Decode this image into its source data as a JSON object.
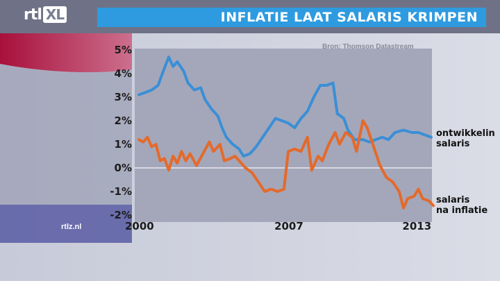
{
  "header": {
    "logo_prefix": "rtl",
    "logo_suffix": "XL",
    "headline": "INFLATIE LAAT SALARIS KRIMPEN"
  },
  "source": "Bron: Thomson Datastream",
  "site": "rtlz.nl",
  "colors": {
    "accent": "#2e9be0",
    "series_blue": "#3a8fd6",
    "series_orange": "#e46a2b",
    "plot_bg": "#a4a7ba"
  },
  "chart_data": {
    "type": "line",
    "xlim": [
      2000,
      2013.8
    ],
    "ylim": [
      -2,
      5
    ],
    "yticks": [
      "5%",
      "4%",
      "3%",
      "2%",
      "1%",
      "0%",
      "-1%",
      "-2%"
    ],
    "ytick_values": [
      5,
      4,
      3,
      2,
      1,
      0,
      -1,
      -2
    ],
    "xticks": [
      "2000",
      "2007",
      "2013"
    ],
    "xtick_values": [
      2000.0,
      2007.0,
      2013.0
    ],
    "grid": false,
    "zero_line": true,
    "series": [
      {
        "name": "ontwikkeling salaris",
        "label_line1": "ontwikkelin",
        "label_line2": "salaris",
        "color": "#3a8fd6",
        "points": [
          [
            2000.0,
            3.1
          ],
          [
            2000.3,
            3.2
          ],
          [
            2000.6,
            3.3
          ],
          [
            2000.9,
            3.5
          ],
          [
            2001.1,
            4.0
          ],
          [
            2001.4,
            4.7
          ],
          [
            2001.6,
            4.3
          ],
          [
            2001.8,
            4.5
          ],
          [
            2002.1,
            4.1
          ],
          [
            2002.3,
            3.6
          ],
          [
            2002.6,
            3.3
          ],
          [
            2002.9,
            3.4
          ],
          [
            2003.1,
            2.9
          ],
          [
            2003.4,
            2.5
          ],
          [
            2003.7,
            2.2
          ],
          [
            2003.9,
            1.7
          ],
          [
            2004.1,
            1.3
          ],
          [
            2004.4,
            1.0
          ],
          [
            2004.7,
            0.8
          ],
          [
            2004.9,
            0.5
          ],
          [
            2005.2,
            0.6
          ],
          [
            2005.5,
            0.9
          ],
          [
            2005.8,
            1.3
          ],
          [
            2006.1,
            1.7
          ],
          [
            2006.4,
            2.1
          ],
          [
            2006.7,
            2.0
          ],
          [
            2007.0,
            1.9
          ],
          [
            2007.3,
            1.7
          ],
          [
            2007.6,
            2.1
          ],
          [
            2007.9,
            2.4
          ],
          [
            2008.2,
            3.0
          ],
          [
            2008.5,
            3.5
          ],
          [
            2008.8,
            3.5
          ],
          [
            2009.1,
            3.6
          ],
          [
            2009.3,
            2.3
          ],
          [
            2009.6,
            2.1
          ],
          [
            2009.8,
            1.6
          ],
          [
            2010.1,
            1.2
          ],
          [
            2010.5,
            1.2
          ],
          [
            2010.8,
            1.1
          ],
          [
            2011.1,
            1.2
          ],
          [
            2011.4,
            1.3
          ],
          [
            2011.7,
            1.2
          ],
          [
            2012.0,
            1.5
          ],
          [
            2012.4,
            1.6
          ],
          [
            2012.8,
            1.5
          ],
          [
            2013.1,
            1.5
          ],
          [
            2013.4,
            1.4
          ],
          [
            2013.7,
            1.3
          ]
        ]
      },
      {
        "name": "salaris na inflatie",
        "label_line1": "salaris",
        "label_line2": "na inflatie",
        "color": "#e46a2b",
        "points": [
          [
            2000.0,
            1.2
          ],
          [
            2000.2,
            1.1
          ],
          [
            2000.4,
            1.3
          ],
          [
            2000.6,
            0.9
          ],
          [
            2000.8,
            1.0
          ],
          [
            2001.0,
            0.3
          ],
          [
            2001.2,
            0.4
          ],
          [
            2001.4,
            -0.1
          ],
          [
            2001.6,
            0.5
          ],
          [
            2001.8,
            0.2
          ],
          [
            2002.0,
            0.7
          ],
          [
            2002.2,
            0.3
          ],
          [
            2002.4,
            0.6
          ],
          [
            2002.7,
            0.1
          ],
          [
            2003.0,
            0.6
          ],
          [
            2003.3,
            1.1
          ],
          [
            2003.5,
            0.7
          ],
          [
            2003.8,
            1.0
          ],
          [
            2004.0,
            0.3
          ],
          [
            2004.3,
            0.4
          ],
          [
            2004.5,
            0.5
          ],
          [
            2004.8,
            0.2
          ],
          [
            2005.0,
            0.0
          ],
          [
            2005.3,
            -0.2
          ],
          [
            2005.6,
            -0.6
          ],
          [
            2005.9,
            -1.0
          ],
          [
            2006.2,
            -0.9
          ],
          [
            2006.5,
            -1.0
          ],
          [
            2006.8,
            -0.9
          ],
          [
            2007.0,
            0.7
          ],
          [
            2007.3,
            0.8
          ],
          [
            2007.6,
            0.7
          ],
          [
            2007.9,
            1.3
          ],
          [
            2008.1,
            -0.1
          ],
          [
            2008.4,
            0.5
          ],
          [
            2008.6,
            0.3
          ],
          [
            2008.9,
            1.0
          ],
          [
            2009.2,
            1.5
          ],
          [
            2009.4,
            1.0
          ],
          [
            2009.7,
            1.5
          ],
          [
            2010.0,
            1.3
          ],
          [
            2010.2,
            0.7
          ],
          [
            2010.5,
            2.0
          ],
          [
            2010.7,
            1.7
          ],
          [
            2011.0,
            0.9
          ],
          [
            2011.3,
            0.1
          ],
          [
            2011.6,
            -0.4
          ],
          [
            2011.9,
            -0.6
          ],
          [
            2012.2,
            -1.0
          ],
          [
            2012.4,
            -1.7
          ],
          [
            2012.6,
            -1.3
          ],
          [
            2012.9,
            -1.2
          ],
          [
            2013.1,
            -0.9
          ],
          [
            2013.3,
            -1.3
          ],
          [
            2013.6,
            -1.4
          ],
          [
            2013.8,
            -1.6
          ]
        ]
      }
    ]
  }
}
